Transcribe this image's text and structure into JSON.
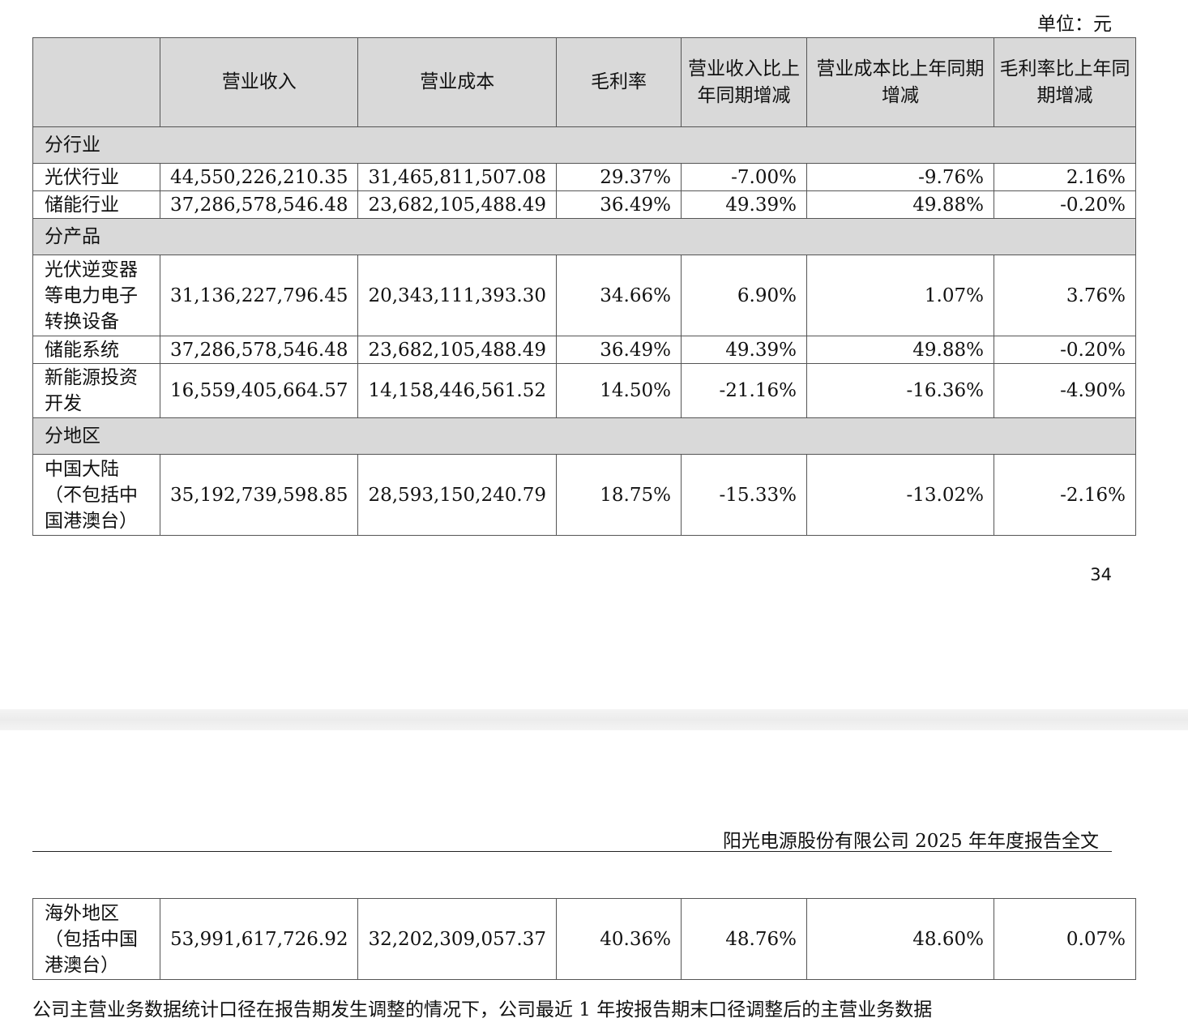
{
  "unit_label": "单位：元",
  "columns": [
    "",
    "营业收入",
    "营业成本",
    "毛利率",
    "营业收入比上年同期增减",
    "营业成本比上年同期增减",
    "毛利率比上年同期增减"
  ],
  "sections": [
    {
      "title": "分行业",
      "rows": [
        {
          "label": "光伏行业",
          "values": [
            "44,550,226,210.35",
            "31,465,811,507.08",
            "29.37%",
            "-7.00%",
            "-9.76%",
            "2.16%"
          ]
        },
        {
          "label": "储能行业",
          "values": [
            "37,286,578,546.48",
            "23,682,105,488.49",
            "36.49%",
            "49.39%",
            "49.88%",
            "-0.20%"
          ]
        }
      ]
    },
    {
      "title": "分产品",
      "rows": [
        {
          "label": "光伏逆变器等电力电子转换设备",
          "values": [
            "31,136,227,796.45",
            "20,343,111,393.30",
            "34.66%",
            "6.90%",
            "1.07%",
            "3.76%"
          ]
        },
        {
          "label": "储能系统",
          "values": [
            "37,286,578,546.48",
            "23,682,105,488.49",
            "36.49%",
            "49.39%",
            "49.88%",
            "-0.20%"
          ]
        },
        {
          "label": "新能源投资开发",
          "values": [
            "16,559,405,664.57",
            "14,158,446,561.52",
            "14.50%",
            "-21.16%",
            "-16.36%",
            "-4.90%"
          ]
        }
      ]
    },
    {
      "title": "分地区",
      "rows": [
        {
          "label": "中国大陆（不包括中国港澳台）",
          "values": [
            "35,192,739,598.85",
            "28,593,150,240.79",
            "18.75%",
            "-15.33%",
            "-13.02%",
            "-2.16%"
          ]
        }
      ]
    }
  ],
  "page_number": "34",
  "page_header": "阳光电源股份有限公司 2025 年年度报告全文",
  "continued_rows": [
    {
      "label": "海外地区（包括中国港澳台）",
      "values": [
        "53,991,617,726.92",
        "32,202,309,057.37",
        "40.36%",
        "48.76%",
        "48.60%",
        "0.07%"
      ]
    }
  ],
  "footnote": "公司主营业务数据统计口径在报告期发生调整的情况下，公司最近 1 年按报告期末口径调整后的主营业务数据"
}
